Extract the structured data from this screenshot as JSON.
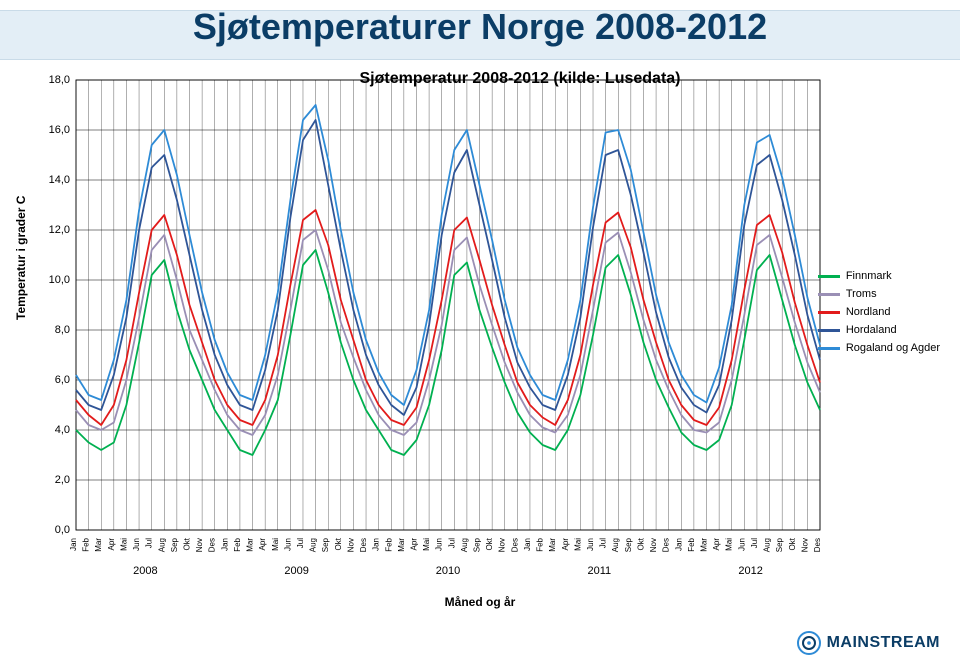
{
  "page": {
    "title": "Sjøtemperaturer Norge 2008-2012",
    "subtitle": "Sjøtemperatur 2008-2012 (kilde: Lusedata)",
    "ylabel": "Temperatur i grader C",
    "xlabel": "Måned og år"
  },
  "chart": {
    "type": "line",
    "background_color": "#ffffff",
    "grid_color": "#000000",
    "grid_stroke": 0.6,
    "ylim": [
      0,
      18
    ],
    "ytick_step": 2,
    "yticks": [
      "0,0",
      "2,0",
      "4,0",
      "6,0",
      "8,0",
      "10,0",
      "12,0",
      "14,0",
      "16,0",
      "18,0"
    ],
    "years": [
      "2008",
      "2009",
      "2010",
      "2011",
      "2012"
    ],
    "months": [
      "Jan",
      "Feb",
      "Mar",
      "Apr",
      "Mai",
      "Jun",
      "Jul",
      "Aug",
      "Sep",
      "Okt",
      "Nov",
      "Des"
    ],
    "line_width": 1.8,
    "series": [
      {
        "name": "Finnmark",
        "color": "#00b050",
        "values": [
          4.0,
          3.5,
          3.2,
          3.5,
          5.0,
          7.5,
          10.2,
          10.8,
          8.8,
          7.2,
          6.0,
          4.8,
          4.0,
          3.2,
          3.0,
          4.0,
          5.2,
          7.8,
          10.6,
          11.2,
          9.5,
          7.5,
          6.0,
          4.8,
          4.0,
          3.2,
          3.0,
          3.6,
          5.0,
          7.2,
          10.2,
          10.7,
          8.8,
          7.3,
          5.9,
          4.7,
          3.9,
          3.4,
          3.2,
          4.0,
          5.4,
          7.8,
          10.5,
          11.0,
          9.4,
          7.5,
          6.0,
          4.9,
          3.9,
          3.4,
          3.2,
          3.6,
          5.0,
          7.6,
          10.4,
          11.0,
          9.2,
          7.4,
          5.9,
          4.8
        ]
      },
      {
        "name": "Troms",
        "color": "#9a8fb5",
        "values": [
          4.8,
          4.2,
          4.0,
          4.3,
          6.0,
          8.5,
          11.2,
          11.8,
          10.0,
          8.0,
          6.8,
          5.6,
          4.6,
          4.0,
          3.8,
          4.6,
          6.2,
          8.8,
          11.6,
          12.0,
          10.4,
          8.3,
          6.9,
          5.6,
          4.6,
          4.0,
          3.8,
          4.3,
          6.0,
          8.2,
          11.2,
          11.7,
          9.8,
          8.2,
          6.7,
          5.5,
          4.6,
          4.1,
          3.9,
          4.6,
          6.2,
          8.8,
          11.5,
          11.9,
          10.3,
          8.4,
          6.8,
          5.6,
          4.6,
          4.0,
          3.9,
          4.3,
          6.0,
          8.6,
          11.4,
          11.8,
          10.1,
          8.3,
          6.7,
          5.5
        ]
      },
      {
        "name": "Nordland",
        "color": "#e21b1b",
        "values": [
          5.2,
          4.6,
          4.2,
          5.0,
          6.8,
          9.5,
          12.0,
          12.6,
          11.0,
          9.0,
          7.5,
          6.0,
          5.0,
          4.4,
          4.2,
          5.2,
          7.0,
          9.8,
          12.4,
          12.8,
          11.4,
          9.2,
          7.6,
          6.0,
          5.0,
          4.4,
          4.2,
          4.9,
          6.8,
          9.2,
          12.0,
          12.5,
          10.8,
          9.0,
          7.4,
          5.9,
          5.0,
          4.5,
          4.2,
          5.2,
          7.0,
          9.8,
          12.3,
          12.7,
          11.3,
          9.2,
          7.5,
          6.0,
          5.0,
          4.4,
          4.2,
          4.9,
          6.8,
          9.6,
          12.2,
          12.6,
          11.1,
          9.1,
          7.4,
          5.9
        ]
      },
      {
        "name": "Hordaland",
        "color": "#2f5597",
        "values": [
          5.6,
          5.0,
          4.8,
          6.2,
          8.5,
          12.0,
          14.5,
          15.0,
          13.2,
          11.0,
          8.8,
          7.0,
          5.8,
          5.0,
          4.8,
          6.4,
          8.8,
          12.5,
          15.6,
          16.4,
          13.8,
          11.2,
          8.8,
          7.0,
          5.8,
          5.0,
          4.6,
          5.7,
          8.2,
          11.8,
          14.3,
          15.2,
          13.0,
          10.8,
          8.5,
          6.7,
          5.7,
          5.0,
          4.8,
          6.2,
          8.5,
          12.1,
          15.0,
          15.2,
          13.4,
          11.1,
          8.7,
          6.9,
          5.7,
          5.0,
          4.7,
          5.8,
          8.4,
          12.2,
          14.6,
          15.0,
          13.2,
          11.0,
          8.6,
          6.8
        ]
      },
      {
        "name": "Rogaland og Agder",
        "color": "#2e8bd6",
        "values": [
          6.2,
          5.4,
          5.2,
          6.8,
          9.2,
          12.8,
          15.4,
          16.0,
          14.2,
          11.8,
          9.5,
          7.6,
          6.3,
          5.4,
          5.2,
          7.0,
          9.5,
          13.2,
          16.4,
          17.0,
          14.8,
          12.0,
          9.5,
          7.6,
          6.3,
          5.4,
          5.0,
          6.4,
          8.8,
          12.6,
          15.2,
          16.0,
          13.8,
          11.6,
          9.2,
          7.3,
          6.2,
          5.4,
          5.2,
          6.8,
          9.2,
          12.9,
          15.9,
          16.0,
          14.4,
          11.9,
          9.4,
          7.5,
          6.2,
          5.4,
          5.1,
          6.5,
          9.0,
          13.0,
          15.5,
          15.8,
          14.1,
          11.8,
          9.3,
          7.4
        ]
      }
    ]
  },
  "logo": {
    "text": "MAINSTREAM",
    "accent1": "#0b3d66",
    "accent2": "#2e8bd6"
  }
}
